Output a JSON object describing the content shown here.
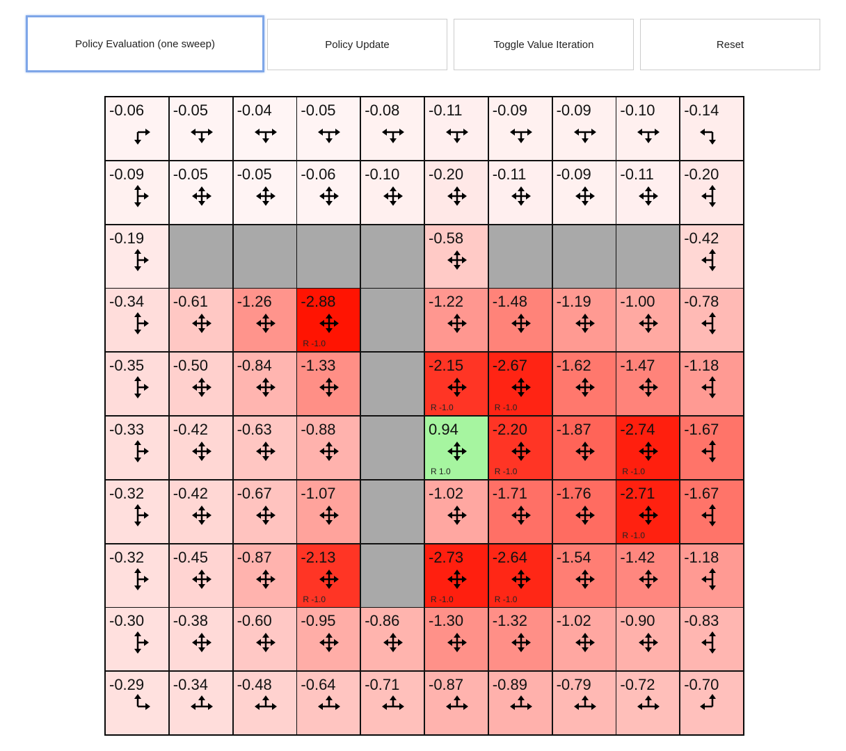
{
  "toolbar": {
    "buttons": [
      "Policy Evaluation (one sweep)",
      "Policy Update",
      "Toggle Value Iteration",
      "Reset"
    ]
  },
  "colors": {
    "wall": "#a9a9a9",
    "goal": "#a6f5a0",
    "negative": "#ff2a00",
    "border": "#111111"
  },
  "grid": {
    "rows": [
      [
        "-0.06",
        "-0.05",
        "-0.04",
        "-0.05",
        "-0.08",
        "-0.11",
        "-0.09",
        "-0.09",
        "-0.10",
        "-0.14"
      ],
      [
        "-0.09",
        "-0.05",
        "-0.05",
        "-0.06",
        "-0.10",
        "-0.20",
        "-0.11",
        "-0.09",
        "-0.11",
        "-0.20"
      ],
      [
        "-0.19",
        null,
        null,
        null,
        null,
        "-0.58",
        null,
        null,
        null,
        "-0.42"
      ],
      [
        "-0.34",
        "-0.61",
        "-1.26",
        "-2.88",
        null,
        "-1.22",
        "-1.48",
        "-1.19",
        "-1.00",
        "-0.78"
      ],
      [
        "-0.35",
        "-0.50",
        "-0.84",
        "-1.33",
        null,
        "-2.15",
        "-2.67",
        "-1.62",
        "-1.47",
        "-1.18"
      ],
      [
        "-0.33",
        "-0.42",
        "-0.63",
        "-0.88",
        null,
        "0.94",
        "-2.20",
        "-1.87",
        "-2.74",
        "-1.67"
      ],
      [
        "-0.32",
        "-0.42",
        "-0.67",
        "-1.07",
        null,
        "-1.02",
        "-1.71",
        "-1.76",
        "-2.71",
        "-1.67"
      ],
      [
        "-0.32",
        "-0.45",
        "-0.87",
        "-2.13",
        null,
        "-2.73",
        "-2.64",
        "-1.54",
        "-1.42",
        "-1.18"
      ],
      [
        "-0.30",
        "-0.38",
        "-0.60",
        "-0.95",
        "-0.86",
        "-1.30",
        "-1.32",
        "-1.02",
        "-0.90",
        "-0.83"
      ],
      [
        "-0.29",
        "-0.34",
        "-0.48",
        "-0.64",
        "-0.71",
        "-0.87",
        "-0.89",
        "-0.79",
        "-0.72",
        "-0.70"
      ]
    ],
    "rewards": [
      {
        "row": 3,
        "col": 3,
        "label": "R -1.0"
      },
      {
        "row": 4,
        "col": 5,
        "label": "R -1.0"
      },
      {
        "row": 4,
        "col": 6,
        "label": "R -1.0"
      },
      {
        "row": 5,
        "col": 5,
        "label": "R 1.0"
      },
      {
        "row": 5,
        "col": 6,
        "label": "R -1.0"
      },
      {
        "row": 5,
        "col": 8,
        "label": "R -1.0"
      },
      {
        "row": 6,
        "col": 8,
        "label": "R -1.0"
      },
      {
        "row": 7,
        "col": 3,
        "label": "R -1.0"
      },
      {
        "row": 7,
        "col": 5,
        "label": "R -1.0"
      },
      {
        "row": 7,
        "col": 6,
        "label": "R -1.0"
      }
    ]
  }
}
